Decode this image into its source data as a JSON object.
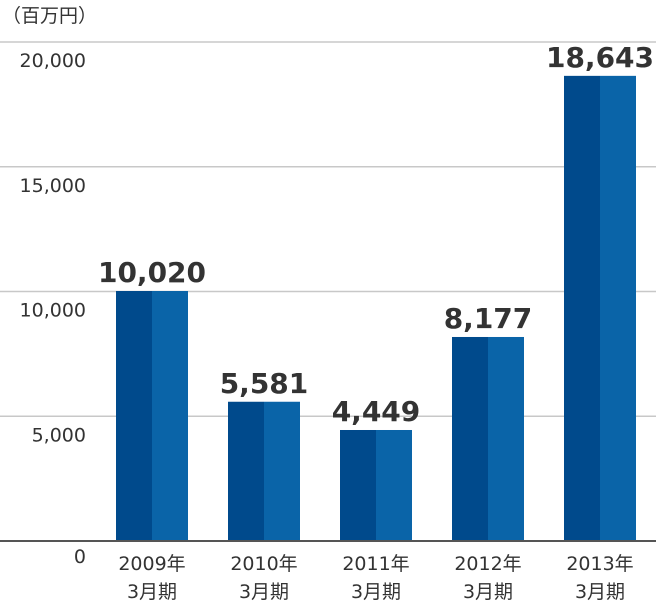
{
  "chart_data": {
    "type": "bar",
    "unit_label": "（百万円）",
    "categories": [
      [
        "2009年",
        "3月期"
      ],
      [
        "2010年",
        "3月期"
      ],
      [
        "2011年",
        "3月期"
      ],
      [
        "2012年",
        "3月期"
      ],
      [
        "2013年",
        "3月期"
      ]
    ],
    "values": [
      10020,
      5581,
      4449,
      8177,
      18643
    ],
    "value_labels": [
      "10,020",
      "5,581",
      "4,449",
      "8,177",
      "18,643"
    ],
    "yticks": [
      0,
      5000,
      10000,
      15000,
      20000
    ],
    "ytick_labels": [
      "0",
      "5,000",
      "10,000",
      "15,000",
      "20,000"
    ],
    "ylim": [
      0,
      20000
    ],
    "grid": true,
    "colors": {
      "bar_dark": "#004a8c",
      "bar_light": "#0a64a8",
      "grid": "#c8c8c8",
      "axis": "#555555",
      "text": "#333333"
    }
  }
}
